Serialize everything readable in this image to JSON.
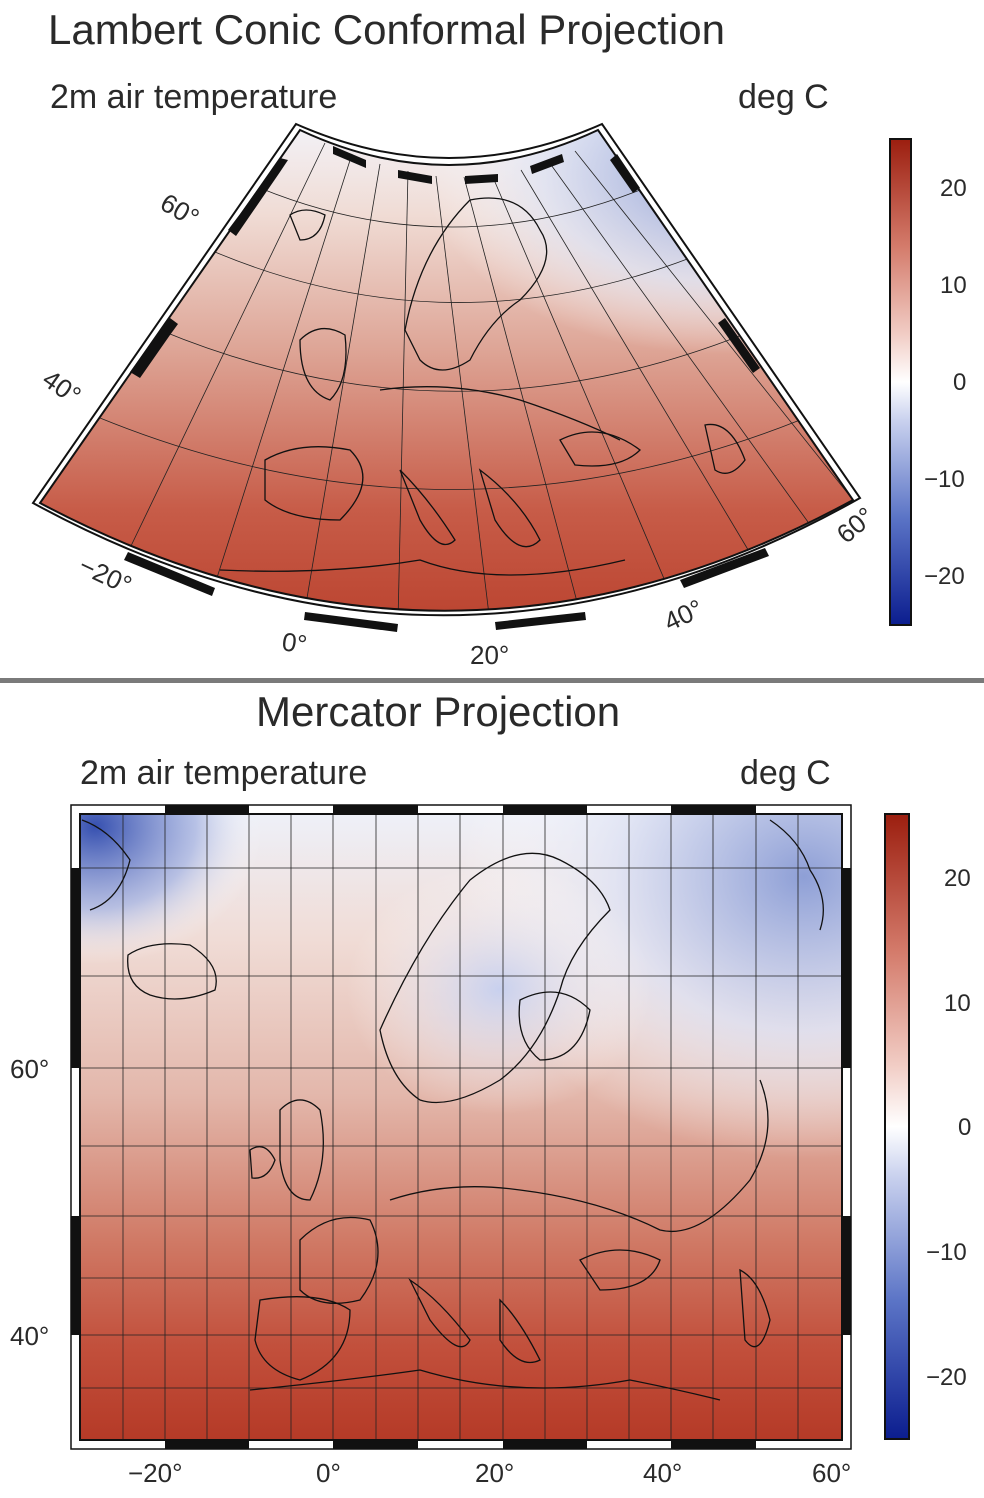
{
  "maps": [
    {
      "title": "Lambert Conic Conformal Projection",
      "variable": "2m air temperature",
      "units": "deg C",
      "lat_labels": [
        "60°",
        "40°"
      ],
      "lon_labels": [
        "−20°",
        "0°",
        "20°",
        "40°",
        "60°"
      ],
      "colorbar_ticks": [
        "20",
        "10",
        "0",
        "−10",
        "−20"
      ]
    },
    {
      "title": "Mercator Projection",
      "variable": "2m air temperature",
      "units": "deg C",
      "lat_labels": [
        "60°",
        "40°"
      ],
      "lon_labels": [
        "−20°",
        "0°",
        "20°",
        "40°",
        "60°"
      ],
      "colorbar_ticks": [
        "20",
        "10",
        "0",
        "−10",
        "−20"
      ]
    }
  ],
  "colors": {
    "cold": "#0c1e8f",
    "neutral": "#ffffff",
    "warm": "#9c1f10",
    "missing": "#8a8a8a"
  }
}
